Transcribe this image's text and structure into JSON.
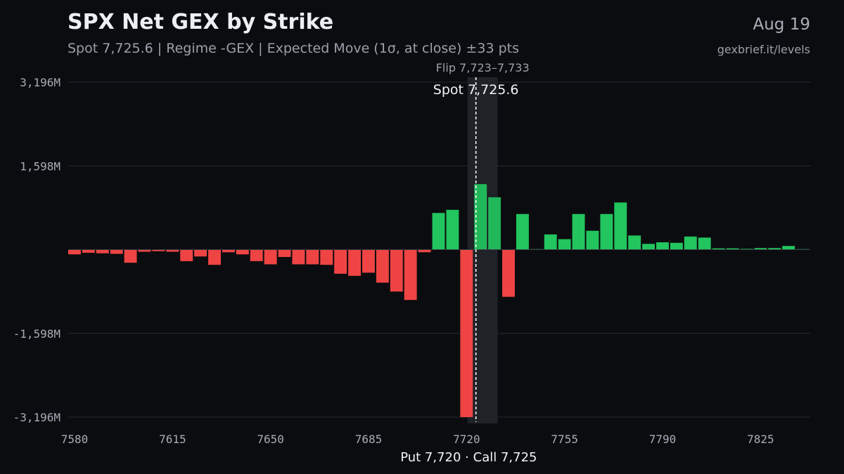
{
  "header": {
    "title": "SPX Net GEX by Strike",
    "subtitle": "Spot 7,725.6 | Regime -GEX | Expected Move (1σ, at close) ±33 pts",
    "date": "Aug 19",
    "source": "gexbrief.it/levels"
  },
  "colors": {
    "positive": "#22c55e",
    "negative": "#ef4444",
    "background": "#0b0c0f",
    "grid": "#262a31",
    "flip_band": "#1f2227"
  },
  "chart_data": {
    "type": "bar",
    "title": "SPX Net GEX by Strike",
    "xlabel": "Put 7,720 · Call 7,725",
    "ylabel": "",
    "x_unit": "strike",
    "y_unit": "M",
    "xlim": [
      7580,
      7845
    ],
    "ylim": [
      -3196,
      3196
    ],
    "y_ticks": [
      3196,
      1598,
      -1598,
      -3196
    ],
    "y_tick_labels": [
      "3,196M",
      "1,598M",
      "-1,598M",
      "-3,196M"
    ],
    "x_ticks": [
      7580,
      7615,
      7650,
      7685,
      7720,
      7755,
      7790,
      7825
    ],
    "x_tick_labels": [
      "7580",
      "7615",
      "7650",
      "7685",
      "7720",
      "7755",
      "7790",
      "7825"
    ],
    "grid": true,
    "strikes": [
      7580,
      7585,
      7590,
      7595,
      7600,
      7605,
      7610,
      7615,
      7620,
      7625,
      7630,
      7635,
      7640,
      7645,
      7650,
      7655,
      7660,
      7665,
      7670,
      7675,
      7680,
      7685,
      7690,
      7695,
      7700,
      7705,
      7710,
      7715,
      7720,
      7725,
      7730,
      7735,
      7740,
      7745,
      7750,
      7755,
      7760,
      7765,
      7770,
      7775,
      7780,
      7785,
      7790,
      7795,
      7800,
      7805,
      7810,
      7815,
      7820,
      7825,
      7830,
      7835,
      7840
    ],
    "values": [
      -90,
      -60,
      -70,
      -80,
      -250,
      -40,
      -30,
      -40,
      -220,
      -130,
      -290,
      -50,
      -90,
      -220,
      -280,
      -140,
      -280,
      -280,
      -290,
      -460,
      -500,
      -440,
      -630,
      -800,
      -960,
      -50,
      700,
      760,
      -3196,
      1250,
      1000,
      -900,
      680,
      10,
      290,
      200,
      680,
      360,
      680,
      900,
      270,
      110,
      140,
      130,
      250,
      230,
      25,
      25,
      15,
      30,
      30,
      70,
      10
    ],
    "spot": 7725.6,
    "spot_label": "Spot 7,725.6",
    "flip": [
      7723,
      7733
    ],
    "flip_label": "Flip 7,723–7,733",
    "put_wall": 7720,
    "call_wall": 7725
  }
}
